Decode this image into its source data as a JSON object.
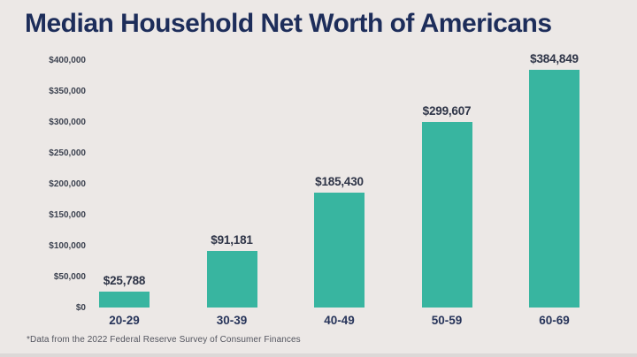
{
  "page": {
    "background_color": "#ece8e6",
    "title_color": "#1d2d5a",
    "accent_color": "#38b5a0"
  },
  "chart_data": {
    "type": "bar",
    "title": "Median Household Net Worth of Americans",
    "categories": [
      "20-29",
      "30-39",
      "40-49",
      "50-59",
      "60-69"
    ],
    "values": [
      25788,
      91181,
      185430,
      299607,
      384849
    ],
    "value_labels": [
      "$25,788",
      "$91,181",
      "$185,430",
      "$299,607",
      "$384,849"
    ],
    "xlabel": "",
    "ylabel": "",
    "ylim": [
      0,
      400000
    ],
    "ytick_interval": 50000,
    "ytick_labels": [
      "$400,000",
      "$350,000",
      "$300,000",
      "$250,000",
      "$200,000",
      "$150,000",
      "$100,000",
      "$50,000",
      "$0"
    ],
    "grid": false,
    "legend": false,
    "bar_color": "#38b5a0"
  },
  "footnote": "*Data from the 2022 Federal Reserve Survey of Consumer Finances"
}
